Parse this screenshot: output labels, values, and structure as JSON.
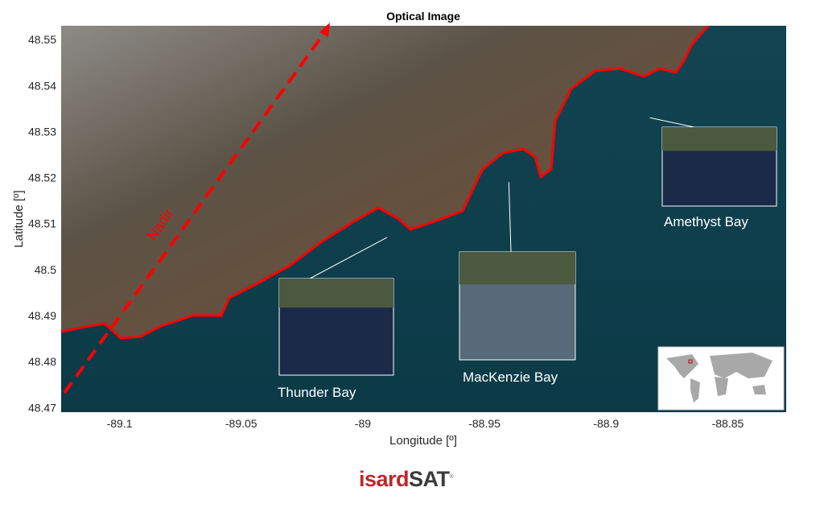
{
  "chart_data": {
    "type": "map",
    "title": "Optical Image",
    "xlabel": "Longitude [º]",
    "ylabel": "Latitude [º]",
    "xlim": [
      -89.124,
      -88.826
    ],
    "ylim": [
      48.469,
      48.553
    ],
    "xticks": [
      -89.1,
      -89.05,
      -89,
      -88.95,
      -88.9,
      -88.85
    ],
    "xtick_labels": [
      "-89.1",
      "-89.05",
      "-89",
      "-88.95",
      "-88.9",
      "-88.85"
    ],
    "yticks": [
      48.47,
      48.48,
      48.49,
      48.5,
      48.51,
      48.52,
      48.53,
      48.54,
      48.55
    ],
    "ytick_labels": [
      "48.47",
      "48.48",
      "48.49",
      "48.5",
      "48.51",
      "48.52",
      "48.53",
      "48.54",
      "48.55"
    ],
    "annotations": {
      "nadir": "Nadir",
      "insets": [
        {
          "label": "Thunder Bay",
          "point": [
            -88.99,
            48.507
          ]
        },
        {
          "label": "MacKenzie Bay",
          "point": [
            -88.94,
            48.519
          ]
        },
        {
          "label": "Amethyst Bay",
          "point": [
            -88.882,
            48.533
          ]
        }
      ]
    },
    "colors": {
      "coastline": "#ff0000",
      "nadir_track": "#ff0000",
      "water": "#0f3d4a",
      "land": "#5a4a3a"
    }
  },
  "logo": {
    "part1": "isard",
    "part2": "SAT",
    "mark": "®"
  }
}
